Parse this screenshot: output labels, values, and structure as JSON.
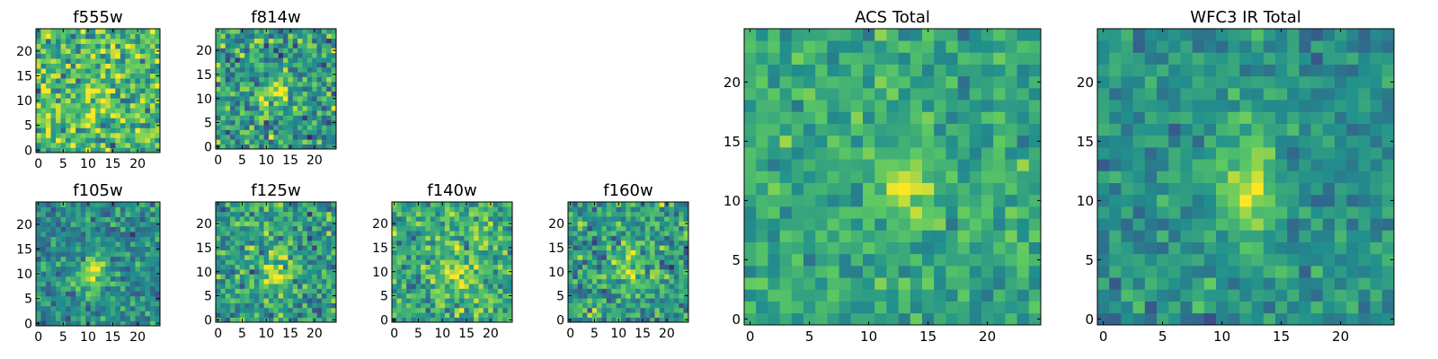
{
  "figure": {
    "description": "Grid of 2D image cutouts (heatmaps) of a galaxy in several HST filters plus total stacks",
    "colormap": "viridis",
    "colormap_stops": [
      "#440154",
      "#3b528b",
      "#21908d",
      "#5dc963",
      "#fde725"
    ]
  },
  "chart_data": [
    {
      "type": "heatmap",
      "title": "f555w",
      "grid_size": [
        25,
        25
      ],
      "xlim": [
        0,
        24
      ],
      "ylim": [
        0,
        24
      ],
      "xticks": [
        0,
        5,
        10,
        15,
        20
      ],
      "yticks": [
        0,
        5,
        10,
        15,
        20
      ],
      "xtick_labels": [
        "0",
        "5",
        "10",
        "15",
        "20"
      ],
      "ytick_labels": [
        "0",
        "5",
        "10",
        "15",
        "20"
      ],
      "source_center": [
        12,
        12
      ],
      "source_strength": 0.15,
      "source_sigma": [
        2.5,
        2.5
      ],
      "noise": 0.3,
      "background": 0.68,
      "seed": 11
    },
    {
      "type": "heatmap",
      "title": "f814w",
      "grid_size": [
        25,
        25
      ],
      "xlim": [
        0,
        24
      ],
      "ylim": [
        0,
        24
      ],
      "xticks": [
        0,
        5,
        10,
        15,
        20
      ],
      "yticks": [
        0,
        5,
        10,
        15,
        20
      ],
      "xtick_labels": [
        "0",
        "5",
        "10",
        "15",
        "20"
      ],
      "ytick_labels": [
        "0",
        "5",
        "10",
        "15",
        "20"
      ],
      "source_center": [
        12,
        11
      ],
      "source_strength": 0.35,
      "source_sigma": [
        2,
        2
      ],
      "noise": 0.28,
      "background": 0.55,
      "seed": 23
    },
    {
      "type": "heatmap",
      "title": "f105w",
      "grid_size": [
        25,
        25
      ],
      "xlim": [
        0,
        24
      ],
      "ylim": [
        0,
        24
      ],
      "xticks": [
        0,
        5,
        10,
        15,
        20
      ],
      "yticks": [
        0,
        5,
        10,
        15,
        20
      ],
      "xtick_labels": [
        "0",
        "5",
        "10",
        "15",
        "20"
      ],
      "ytick_labels": [
        "0",
        "5",
        "10",
        "15",
        "20"
      ],
      "source_center": [
        11,
        10
      ],
      "source_strength": 0.4,
      "source_sigma": [
        1.8,
        3
      ],
      "noise": 0.2,
      "background": 0.48,
      "seed": 37
    },
    {
      "type": "heatmap",
      "title": "f125w",
      "grid_size": [
        25,
        25
      ],
      "xlim": [
        0,
        24
      ],
      "ylim": [
        0,
        24
      ],
      "xticks": [
        0,
        5,
        10,
        15,
        20
      ],
      "yticks": [
        0,
        5,
        10,
        15,
        20
      ],
      "xtick_labels": [
        "0",
        "5",
        "10",
        "15",
        "20"
      ],
      "ytick_labels": [
        "0",
        "5",
        "10",
        "15",
        "20"
      ],
      "source_center": [
        12,
        10
      ],
      "source_strength": 0.35,
      "source_sigma": [
        2,
        3
      ],
      "noise": 0.25,
      "background": 0.55,
      "seed": 41
    },
    {
      "type": "heatmap",
      "title": "f140w",
      "grid_size": [
        25,
        25
      ],
      "xlim": [
        0,
        24
      ],
      "ylim": [
        0,
        24
      ],
      "xticks": [
        0,
        5,
        10,
        15,
        20
      ],
      "yticks": [
        0,
        5,
        10,
        15,
        20
      ],
      "xtick_labels": [
        "0",
        "5",
        "10",
        "15",
        "20"
      ],
      "ytick_labels": [
        "0",
        "5",
        "10",
        "15",
        "20"
      ],
      "source_center": [
        13,
        10
      ],
      "source_strength": 0.3,
      "source_sigma": [
        2.2,
        3
      ],
      "noise": 0.24,
      "background": 0.62,
      "seed": 53
    },
    {
      "type": "heatmap",
      "title": "f160w",
      "grid_size": [
        25,
        25
      ],
      "xlim": [
        0,
        24
      ],
      "ylim": [
        0,
        24
      ],
      "xticks": [
        0,
        5,
        10,
        15,
        20
      ],
      "yticks": [
        0,
        5,
        10,
        15,
        20
      ],
      "xtick_labels": [
        "0",
        "5",
        "10",
        "15",
        "20"
      ],
      "ytick_labels": [
        "0",
        "5",
        "10",
        "15",
        "20"
      ],
      "source_center": [
        12,
        12
      ],
      "source_strength": 0.3,
      "source_sigma": [
        2,
        3.5
      ],
      "noise": 0.25,
      "background": 0.56,
      "seed": 67
    },
    {
      "type": "heatmap",
      "title": "ACS Total",
      "grid_size": [
        25,
        25
      ],
      "xlim": [
        0,
        24
      ],
      "ylim": [
        0,
        24
      ],
      "xticks": [
        0,
        5,
        10,
        15,
        20
      ],
      "yticks": [
        0,
        5,
        10,
        15,
        20
      ],
      "xtick_labels": [
        "0",
        "5",
        "10",
        "15",
        "20"
      ],
      "ytick_labels": [
        "0",
        "5",
        "10",
        "15",
        "20"
      ],
      "source_center": [
        13,
        11
      ],
      "source_strength": 0.35,
      "source_sigma": [
        1.6,
        1.6
      ],
      "noise": 0.16,
      "background": 0.6,
      "seed": 79
    },
    {
      "type": "heatmap",
      "title": "WFC3 IR Total",
      "grid_size": [
        25,
        25
      ],
      "xlim": [
        0,
        24
      ],
      "ylim": [
        0,
        24
      ],
      "xticks": [
        0,
        5,
        10,
        15,
        20
      ],
      "yticks": [
        0,
        5,
        10,
        15,
        20
      ],
      "xtick_labels": [
        "0",
        "5",
        "10",
        "15",
        "20"
      ],
      "ytick_labels": [
        "0",
        "5",
        "10",
        "15",
        "20"
      ],
      "source_center": [
        12,
        11
      ],
      "source_strength": 0.45,
      "source_sigma": [
        1.5,
        3
      ],
      "noise": 0.15,
      "background": 0.5,
      "seed": 97
    }
  ]
}
